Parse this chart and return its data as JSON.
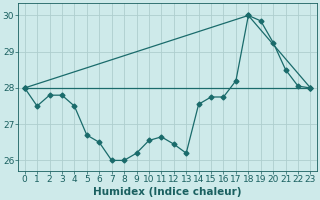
{
  "title": "",
  "xlabel": "Humidex (Indice chaleur)",
  "ylabel": "",
  "xlim": [
    -0.5,
    23.5
  ],
  "ylim": [
    25.7,
    30.35
  ],
  "yticks": [
    26,
    27,
    28,
    29,
    30
  ],
  "xticks": [
    0,
    1,
    2,
    3,
    4,
    5,
    6,
    7,
    8,
    9,
    10,
    11,
    12,
    13,
    14,
    15,
    16,
    17,
    18,
    19,
    20,
    21,
    22,
    23
  ],
  "bg_color": "#ceeaea",
  "grid_color": "#aecece",
  "line_color": "#1a6b6b",
  "line1_x": [
    0,
    1,
    2,
    3,
    4,
    5,
    6,
    7,
    8,
    9,
    10,
    11,
    12,
    13,
    14,
    15,
    16,
    17,
    18,
    19,
    20,
    21,
    22,
    23
  ],
  "line1_y": [
    28.0,
    27.5,
    27.8,
    27.8,
    27.5,
    26.7,
    26.5,
    26.0,
    26.0,
    26.2,
    26.55,
    26.65,
    26.45,
    26.2,
    27.55,
    27.75,
    27.75,
    28.2,
    30.0,
    29.85,
    29.25,
    28.5,
    28.05,
    28.0
  ],
  "line2_x": [
    0,
    18,
    23
  ],
  "line2_y": [
    28.0,
    30.0,
    28.0
  ],
  "line3_x": [
    0,
    23
  ],
  "line3_y": [
    28.0,
    28.0
  ],
  "font_color": "#1a6060",
  "tick_font_size": 6.5,
  "xlabel_font_size": 7.5,
  "marker_size": 2.5,
  "linewidth": 0.9
}
